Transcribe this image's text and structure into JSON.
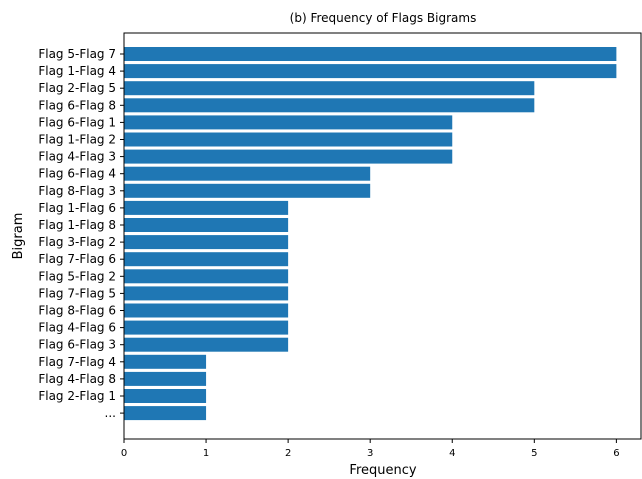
{
  "chart_data": {
    "type": "bar",
    "orientation": "horizontal",
    "title": "(b) Frequency of Flags Bigrams",
    "xlabel": "Frequency",
    "ylabel": "Bigram",
    "xlim": [
      0,
      6.3
    ],
    "xticks": [
      0,
      1,
      2,
      3,
      4,
      5,
      6
    ],
    "grid": false,
    "bar_color": "#1f77b4",
    "categories": [
      "Flag 5-Flag 7",
      "Flag 1-Flag 4",
      "Flag 2-Flag 5",
      "Flag 6-Flag 8",
      "Flag 6-Flag 1",
      "Flag 1-Flag 2",
      "Flag 4-Flag 3",
      "Flag 6-Flag 4",
      "Flag 8-Flag 3",
      "Flag 1-Flag 6",
      "Flag 1-Flag 8",
      "Flag 3-Flag 2",
      "Flag 7-Flag 6",
      "Flag 5-Flag 2",
      "Flag 7-Flag 5",
      "Flag 8-Flag 6",
      "Flag 4-Flag 6",
      "Flag 6-Flag 3",
      "Flag 7-Flag 4",
      "Flag 4-Flag 8",
      "Flag 2-Flag 1",
      "..."
    ],
    "values": [
      6,
      6,
      5,
      5,
      4,
      4,
      4,
      3,
      3,
      2,
      2,
      2,
      2,
      2,
      2,
      2,
      2,
      2,
      1,
      1,
      1,
      1
    ]
  }
}
